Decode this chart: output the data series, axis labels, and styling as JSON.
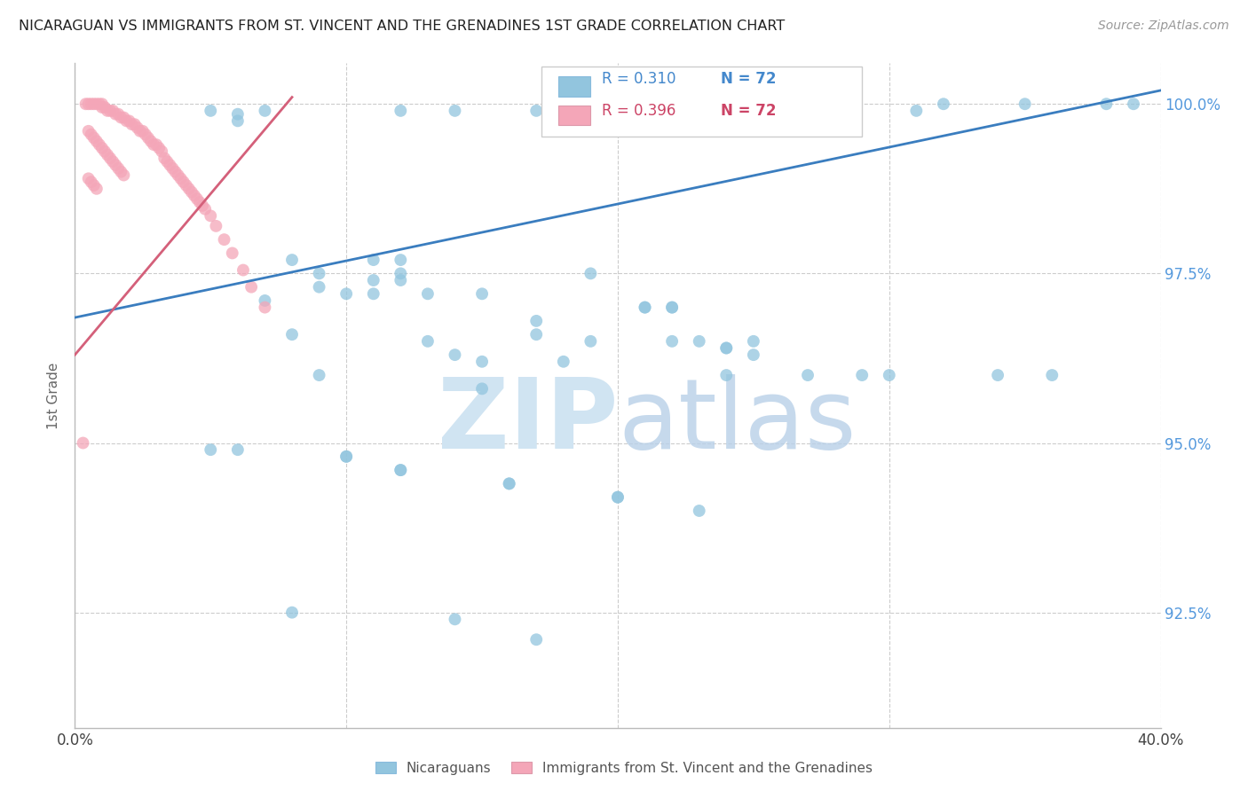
{
  "title": "NICARAGUAN VS IMMIGRANTS FROM ST. VINCENT AND THE GRENADINES 1ST GRADE CORRELATION CHART",
  "source": "Source: ZipAtlas.com",
  "ylabel": "1st Grade",
  "ytick_labels": [
    "100.0%",
    "97.5%",
    "95.0%",
    "92.5%"
  ],
  "ytick_values": [
    1.0,
    0.975,
    0.95,
    0.925
  ],
  "xlim": [
    0.0,
    0.4
  ],
  "ylim": [
    0.908,
    1.006
  ],
  "legend_blue_r": "R = 0.310",
  "legend_blue_n": "N = 72",
  "legend_pink_r": "R = 0.396",
  "legend_pink_n": "N = 72",
  "legend_label_blue": "Nicaraguans",
  "legend_label_pink": "Immigrants from St. Vincent and the Grenadines",
  "blue_color": "#92c5de",
  "pink_color": "#f4a6b8",
  "blue_line_color": "#3a7dbf",
  "pink_line_color": "#d4607a",
  "blue_line_x": [
    0.0,
    0.4
  ],
  "blue_line_y": [
    0.9685,
    1.002
  ],
  "pink_line_x": [
    0.0,
    0.08
  ],
  "pink_line_y": [
    0.963,
    1.001
  ],
  "blue_scatter_x": [
    0.05,
    0.06,
    0.06,
    0.07,
    0.07,
    0.08,
    0.08,
    0.09,
    0.09,
    0.09,
    0.1,
    0.1,
    0.11,
    0.11,
    0.11,
    0.12,
    0.12,
    0.12,
    0.12,
    0.12,
    0.13,
    0.13,
    0.14,
    0.14,
    0.15,
    0.15,
    0.15,
    0.16,
    0.17,
    0.17,
    0.17,
    0.18,
    0.19,
    0.19,
    0.19,
    0.2,
    0.21,
    0.22,
    0.22,
    0.22,
    0.23,
    0.23,
    0.24,
    0.24,
    0.25,
    0.25,
    0.25,
    0.26,
    0.27,
    0.28,
    0.29,
    0.3,
    0.31,
    0.32,
    0.34,
    0.35,
    0.36,
    0.38,
    0.05,
    0.06,
    0.08,
    0.1,
    0.12,
    0.14,
    0.17,
    0.2,
    0.23,
    0.26,
    0.16,
    0.21,
    0.24,
    0.39
  ],
  "blue_scatter_y": [
    0.999,
    0.9985,
    0.9975,
    0.999,
    0.971,
    0.977,
    0.966,
    0.975,
    0.973,
    0.96,
    0.972,
    0.948,
    0.977,
    0.974,
    0.972,
    0.999,
    0.977,
    0.975,
    0.974,
    0.946,
    0.972,
    0.965,
    0.999,
    0.963,
    0.972,
    0.962,
    0.958,
    0.944,
    0.999,
    0.968,
    0.966,
    0.962,
    0.999,
    0.975,
    0.965,
    0.942,
    0.97,
    0.97,
    0.97,
    0.965,
    0.999,
    0.965,
    0.964,
    0.96,
    0.999,
    0.965,
    0.963,
    0.999,
    0.96,
    0.999,
    0.96,
    0.96,
    0.999,
    1.0,
    0.96,
    1.0,
    0.96,
    1.0,
    0.949,
    0.949,
    0.925,
    0.948,
    0.946,
    0.924,
    0.921,
    0.942,
    0.94,
    0.999,
    0.944,
    0.97,
    0.964,
    1.0
  ],
  "pink_scatter_x": [
    0.005,
    0.006,
    0.007,
    0.008,
    0.009,
    0.01,
    0.01,
    0.011,
    0.012,
    0.013,
    0.014,
    0.015,
    0.016,
    0.017,
    0.018,
    0.019,
    0.02,
    0.021,
    0.022,
    0.023,
    0.024,
    0.025,
    0.026,
    0.027,
    0.028,
    0.029,
    0.03,
    0.031,
    0.032,
    0.033,
    0.034,
    0.035,
    0.036,
    0.037,
    0.038,
    0.039,
    0.04,
    0.041,
    0.042,
    0.043,
    0.044,
    0.045,
    0.046,
    0.047,
    0.048,
    0.05,
    0.052,
    0.055,
    0.058,
    0.062,
    0.065,
    0.07,
    0.005,
    0.006,
    0.007,
    0.008,
    0.009,
    0.01,
    0.011,
    0.012,
    0.013,
    0.014,
    0.015,
    0.016,
    0.017,
    0.018,
    0.005,
    0.006,
    0.007,
    0.008,
    0.004,
    0.003
  ],
  "pink_scatter_y": [
    1.0,
    1.0,
    1.0,
    1.0,
    1.0,
    1.0,
    0.9995,
    0.9995,
    0.999,
    0.999,
    0.999,
    0.9985,
    0.9985,
    0.998,
    0.998,
    0.9975,
    0.9975,
    0.997,
    0.997,
    0.9965,
    0.996,
    0.996,
    0.9955,
    0.995,
    0.9945,
    0.994,
    0.994,
    0.9935,
    0.993,
    0.992,
    0.9915,
    0.991,
    0.9905,
    0.99,
    0.9895,
    0.989,
    0.9885,
    0.988,
    0.9875,
    0.987,
    0.9865,
    0.986,
    0.9855,
    0.985,
    0.9845,
    0.9835,
    0.982,
    0.98,
    0.978,
    0.9755,
    0.973,
    0.97,
    0.996,
    0.9955,
    0.995,
    0.9945,
    0.994,
    0.9935,
    0.993,
    0.9925,
    0.992,
    0.9915,
    0.991,
    0.9905,
    0.99,
    0.9895,
    0.989,
    0.9885,
    0.988,
    0.9875,
    1.0,
    0.95
  ]
}
